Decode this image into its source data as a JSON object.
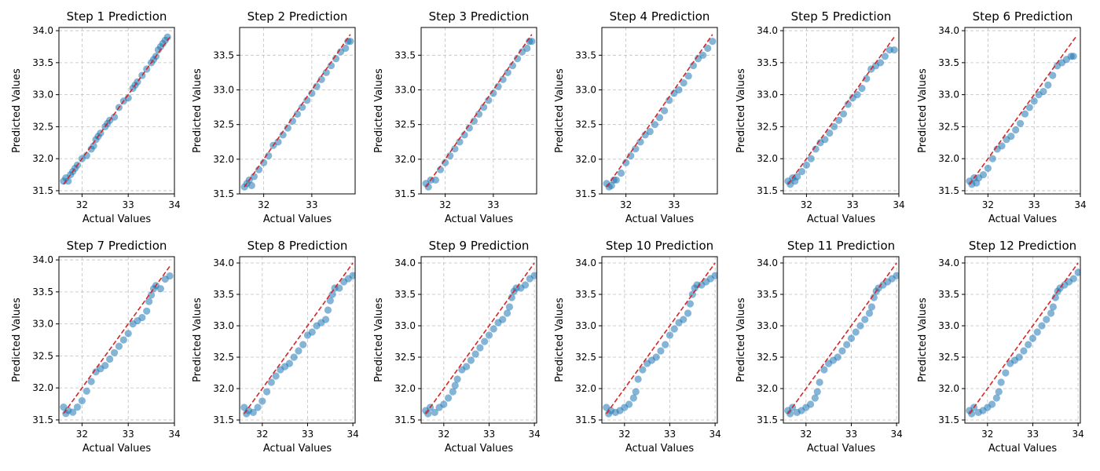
{
  "figure": {
    "xlabel": "Actual Values",
    "ylabel": "Predicted Values",
    "colors": {
      "points": "#1f77b4",
      "ideal_line": "#d62728",
      "grid": "#b0b0b0"
    }
  },
  "chart_data": [
    {
      "type": "scatter",
      "title": "Step 1 Prediction",
      "xlabel": "Actual Values",
      "ylabel": "Predicted Values",
      "xlim": [
        31.5,
        34.0
      ],
      "ylim": [
        31.45,
        34.05
      ],
      "xticks": [
        32,
        33,
        34
      ],
      "yticks": [
        31.5,
        32.0,
        32.5,
        33.0,
        33.5,
        34.0
      ],
      "grid": true,
      "ideal_line": [
        31.6,
        33.9
      ],
      "points": {
        "x": [
          31.6,
          31.65,
          31.7,
          31.75,
          31.8,
          31.85,
          31.9,
          32.0,
          32.1,
          32.2,
          32.25,
          32.3,
          32.35,
          32.4,
          32.5,
          32.55,
          32.6,
          32.7,
          32.8,
          32.9,
          33.0,
          33.1,
          33.15,
          33.2,
          33.3,
          33.4,
          33.5,
          33.55,
          33.6,
          33.65,
          33.7,
          33.75,
          33.8,
          33.85
        ],
        "y": [
          31.65,
          31.7,
          31.65,
          31.75,
          31.8,
          31.85,
          31.9,
          32.0,
          32.05,
          32.15,
          32.2,
          32.3,
          32.35,
          32.4,
          32.5,
          32.55,
          32.6,
          32.65,
          32.8,
          32.9,
          32.95,
          33.1,
          33.15,
          33.2,
          33.3,
          33.4,
          33.5,
          33.55,
          33.6,
          33.7,
          33.75,
          33.8,
          33.85,
          33.9
        ]
      }
    },
    {
      "type": "scatter",
      "title": "Step 2 Prediction",
      "xlabel": "Actual Values",
      "ylabel": "Predicted Values",
      "xlim": [
        31.5,
        33.9
      ],
      "ylim": [
        31.5,
        33.9
      ],
      "xticks": [
        32,
        33
      ],
      "yticks": [
        31.5,
        32.0,
        32.5,
        33.0,
        33.5
      ],
      "grid": true,
      "ideal_line": [
        31.6,
        33.8
      ],
      "points": {
        "x": [
          31.6,
          31.65,
          31.7,
          31.75,
          31.8,
          31.9,
          32.0,
          32.1,
          32.2,
          32.3,
          32.4,
          32.5,
          32.6,
          32.7,
          32.8,
          32.9,
          33.0,
          33.1,
          33.2,
          33.3,
          33.4,
          33.5,
          33.6,
          33.7,
          33.75,
          33.8
        ],
        "y": [
          31.6,
          31.65,
          31.7,
          31.62,
          31.75,
          31.85,
          31.95,
          32.05,
          32.2,
          32.25,
          32.35,
          32.45,
          32.55,
          32.65,
          32.75,
          32.85,
          32.95,
          33.05,
          33.15,
          33.25,
          33.35,
          33.45,
          33.55,
          33.6,
          33.7,
          33.7
        ]
      }
    },
    {
      "type": "scatter",
      "title": "Step 3 Prediction",
      "xlabel": "Actual Values",
      "ylabel": "Predicted Values",
      "xlim": [
        31.5,
        33.9
      ],
      "ylim": [
        31.5,
        33.9
      ],
      "xticks": [
        32,
        33
      ],
      "yticks": [
        31.5,
        32.0,
        32.5,
        33.0,
        33.5
      ],
      "grid": true,
      "ideal_line": [
        31.6,
        33.8
      ],
      "points": {
        "x": [
          31.6,
          31.65,
          31.7,
          31.8,
          31.9,
          32.0,
          32.1,
          32.2,
          32.3,
          32.4,
          32.5,
          32.6,
          32.7,
          32.8,
          32.9,
          33.0,
          33.1,
          33.2,
          33.3,
          33.4,
          33.5,
          33.6,
          33.7,
          33.75,
          33.8
        ],
        "y": [
          31.65,
          31.6,
          31.7,
          31.7,
          31.85,
          31.95,
          32.05,
          32.15,
          32.25,
          32.35,
          32.45,
          32.55,
          32.65,
          32.75,
          32.85,
          32.95,
          33.05,
          33.15,
          33.25,
          33.35,
          33.45,
          33.55,
          33.6,
          33.7,
          33.7
        ]
      }
    },
    {
      "type": "scatter",
      "title": "Step 4 Prediction",
      "xlabel": "Actual Values",
      "ylabel": "Predicted Values",
      "xlim": [
        31.5,
        33.9
      ],
      "ylim": [
        31.5,
        33.9
      ],
      "xticks": [
        32,
        33
      ],
      "yticks": [
        31.5,
        32.0,
        32.5,
        33.0,
        33.5
      ],
      "grid": true,
      "ideal_line": [
        31.6,
        33.8
      ],
      "points": {
        "x": [
          31.6,
          31.65,
          31.7,
          31.75,
          31.8,
          31.9,
          32.0,
          32.1,
          32.2,
          32.3,
          32.4,
          32.5,
          32.6,
          32.7,
          32.8,
          32.9,
          33.0,
          33.1,
          33.2,
          33.3,
          33.4,
          33.5,
          33.6,
          33.7,
          33.8
        ],
        "y": [
          31.65,
          31.6,
          31.62,
          31.7,
          31.7,
          31.8,
          31.95,
          32.05,
          32.15,
          32.25,
          32.35,
          32.4,
          32.5,
          32.6,
          32.7,
          32.85,
          32.95,
          33.0,
          33.1,
          33.2,
          33.35,
          33.45,
          33.5,
          33.6,
          33.7
        ]
      }
    },
    {
      "type": "scatter",
      "title": "Step 5 Prediction",
      "xlabel": "Actual Values",
      "ylabel": "Predicted Values",
      "xlim": [
        31.5,
        34.0
      ],
      "ylim": [
        31.45,
        34.05
      ],
      "xticks": [
        32,
        33,
        34
      ],
      "yticks": [
        31.5,
        32.0,
        32.5,
        33.0,
        33.5,
        34.0
      ],
      "grid": true,
      "ideal_line": [
        31.6,
        33.9
      ],
      "points": {
        "x": [
          31.6,
          31.65,
          31.7,
          31.75,
          31.8,
          31.9,
          32.0,
          32.1,
          32.2,
          32.3,
          32.4,
          32.5,
          32.6,
          32.7,
          32.8,
          32.9,
          33.0,
          33.1,
          33.2,
          33.3,
          33.4,
          33.5,
          33.6,
          33.7,
          33.8,
          33.9
        ],
        "y": [
          31.65,
          31.6,
          31.7,
          31.65,
          31.72,
          31.8,
          31.9,
          32.0,
          32.15,
          32.25,
          32.3,
          32.4,
          32.5,
          32.6,
          32.7,
          32.85,
          32.95,
          33.0,
          33.1,
          33.25,
          33.4,
          33.45,
          33.5,
          33.6,
          33.7,
          33.7
        ]
      }
    },
    {
      "type": "scatter",
      "title": "Step 6 Prediction",
      "xlabel": "Actual Values",
      "ylabel": "Predicted Values",
      "xlim": [
        31.5,
        34.0
      ],
      "ylim": [
        31.45,
        34.05
      ],
      "xticks": [
        32,
        33,
        34
      ],
      "yticks": [
        31.5,
        32.0,
        32.5,
        33.0,
        33.5,
        34.0
      ],
      "grid": true,
      "ideal_line": [
        31.6,
        33.9
      ],
      "points": {
        "x": [
          31.6,
          31.65,
          31.7,
          31.75,
          31.8,
          31.9,
          32.0,
          32.1,
          32.2,
          32.3,
          32.4,
          32.5,
          32.6,
          32.7,
          32.8,
          32.9,
          33.0,
          33.1,
          33.2,
          33.3,
          33.4,
          33.5,
          33.6,
          33.7,
          33.8,
          33.85
        ],
        "y": [
          31.65,
          31.6,
          31.7,
          31.62,
          31.7,
          31.75,
          31.85,
          32.0,
          32.15,
          32.2,
          32.3,
          32.35,
          32.45,
          32.55,
          32.7,
          32.8,
          32.9,
          33.0,
          33.05,
          33.15,
          33.3,
          33.45,
          33.5,
          33.55,
          33.6,
          33.6
        ]
      }
    },
    {
      "type": "scatter",
      "title": "Step 7 Prediction",
      "xlabel": "Actual Values",
      "ylabel": "Predicted Values",
      "xlim": [
        31.5,
        34.0
      ],
      "ylim": [
        31.45,
        34.05
      ],
      "xticks": [
        32,
        33,
        34
      ],
      "yticks": [
        31.5,
        32.0,
        32.5,
        33.0,
        33.5,
        34.0
      ],
      "grid": true,
      "ideal_line": [
        31.6,
        33.9
      ],
      "points": {
        "x": [
          31.6,
          31.65,
          31.7,
          31.8,
          31.9,
          32.0,
          32.1,
          32.2,
          32.3,
          32.4,
          32.5,
          32.6,
          32.7,
          32.8,
          32.9,
          33.0,
          33.1,
          33.2,
          33.3,
          33.4,
          33.45,
          33.5,
          33.55,
          33.6,
          33.7,
          33.8,
          33.9
        ],
        "y": [
          31.7,
          31.6,
          31.65,
          31.62,
          31.7,
          31.8,
          31.95,
          32.1,
          32.25,
          32.3,
          32.35,
          32.45,
          32.55,
          32.65,
          32.75,
          32.85,
          33.0,
          33.05,
          33.1,
          33.2,
          33.35,
          33.45,
          33.55,
          33.6,
          33.55,
          33.7,
          33.75
        ]
      }
    },
    {
      "type": "scatter",
      "title": "Step 8 Prediction",
      "xlabel": "Actual Values",
      "ylabel": "Predicted Values",
      "xlim": [
        31.5,
        34.05
      ],
      "ylim": [
        31.45,
        34.1
      ],
      "xticks": [
        32,
        33,
        34
      ],
      "yticks": [
        31.5,
        32.0,
        32.5,
        33.0,
        33.5,
        34.0
      ],
      "grid": true,
      "ideal_line": [
        31.6,
        34.0
      ],
      "points": {
        "x": [
          31.6,
          31.65,
          31.7,
          31.8,
          31.9,
          32.0,
          32.1,
          32.2,
          32.3,
          32.4,
          32.5,
          32.6,
          32.7,
          32.8,
          32.9,
          33.0,
          33.1,
          33.2,
          33.3,
          33.4,
          33.45,
          33.5,
          33.55,
          33.6,
          33.7,
          33.8,
          33.9,
          34.0
        ],
        "y": [
          31.7,
          31.6,
          31.65,
          31.62,
          31.7,
          31.8,
          31.95,
          32.1,
          32.2,
          32.3,
          32.35,
          32.4,
          32.5,
          32.6,
          32.7,
          32.85,
          32.9,
          33.0,
          33.05,
          33.1,
          33.25,
          33.4,
          33.5,
          33.6,
          33.6,
          33.7,
          33.75,
          33.8
        ]
      }
    },
    {
      "type": "scatter",
      "title": "Step 9 Prediction",
      "xlabel": "Actual Values",
      "ylabel": "Predicted Values",
      "xlim": [
        31.5,
        34.05
      ],
      "ylim": [
        31.45,
        34.1
      ],
      "xticks": [
        32,
        33,
        34
      ],
      "yticks": [
        31.5,
        32.0,
        32.5,
        33.0,
        33.5,
        34.0
      ],
      "grid": true,
      "ideal_line": [
        31.6,
        34.0
      ],
      "points": {
        "x": [
          31.6,
          31.65,
          31.7,
          31.8,
          31.9,
          32.0,
          32.1,
          32.2,
          32.25,
          32.3,
          32.4,
          32.5,
          32.6,
          32.7,
          32.8,
          32.9,
          33.0,
          33.1,
          33.2,
          33.3,
          33.4,
          33.45,
          33.5,
          33.55,
          33.6,
          33.7,
          33.8,
          33.9,
          34.0
        ],
        "y": [
          31.65,
          31.6,
          31.7,
          31.62,
          31.7,
          31.75,
          31.85,
          31.95,
          32.05,
          32.15,
          32.3,
          32.35,
          32.45,
          32.55,
          32.65,
          32.75,
          32.85,
          32.95,
          33.05,
          33.1,
          33.2,
          33.3,
          33.45,
          33.55,
          33.6,
          33.6,
          33.65,
          33.75,
          33.8
        ]
      }
    },
    {
      "type": "scatter",
      "title": "Step 10 Prediction",
      "xlabel": "Actual Values",
      "ylabel": "Predicted Values",
      "xlim": [
        31.5,
        34.05
      ],
      "ylim": [
        31.45,
        34.1
      ],
      "xticks": [
        32,
        33,
        34
      ],
      "yticks": [
        31.5,
        32.0,
        32.5,
        33.0,
        33.5,
        34.0
      ],
      "grid": true,
      "ideal_line": [
        31.6,
        34.0
      ],
      "points": {
        "x": [
          31.6,
          31.65,
          31.7,
          31.8,
          31.9,
          32.0,
          32.1,
          32.2,
          32.25,
          32.3,
          32.4,
          32.5,
          32.6,
          32.7,
          32.8,
          32.9,
          33.0,
          33.1,
          33.2,
          33.3,
          33.4,
          33.45,
          33.5,
          33.55,
          33.6,
          33.7,
          33.8,
          33.9,
          34.0
        ],
        "y": [
          31.7,
          31.6,
          31.65,
          31.62,
          31.65,
          31.7,
          31.75,
          31.85,
          31.95,
          32.15,
          32.3,
          32.4,
          32.45,
          32.5,
          32.6,
          32.7,
          32.85,
          32.95,
          33.05,
          33.1,
          33.2,
          33.35,
          33.5,
          33.6,
          33.65,
          33.65,
          33.7,
          33.75,
          33.8
        ]
      }
    },
    {
      "type": "scatter",
      "title": "Step 11 Prediction",
      "xlabel": "Actual Values",
      "ylabel": "Predicted Values",
      "xlim": [
        31.5,
        34.05
      ],
      "ylim": [
        31.45,
        34.1
      ],
      "xticks": [
        32,
        33,
        34
      ],
      "yticks": [
        31.5,
        32.0,
        32.5,
        33.0,
        33.5,
        34.0
      ],
      "grid": true,
      "ideal_line": [
        31.6,
        34.0
      ],
      "points": {
        "x": [
          31.6,
          31.65,
          31.7,
          31.8,
          31.9,
          32.0,
          32.1,
          32.2,
          32.25,
          32.3,
          32.4,
          32.5,
          32.6,
          32.7,
          32.8,
          32.9,
          33.0,
          33.1,
          33.2,
          33.3,
          33.4,
          33.45,
          33.5,
          33.55,
          33.6,
          33.7,
          33.8,
          33.9,
          34.0
        ],
        "y": [
          31.65,
          31.6,
          31.7,
          31.62,
          31.65,
          31.7,
          31.75,
          31.85,
          31.95,
          32.1,
          32.3,
          32.4,
          32.45,
          32.5,
          32.6,
          32.7,
          32.8,
          32.9,
          33.0,
          33.1,
          33.2,
          33.3,
          33.45,
          33.55,
          33.6,
          33.65,
          33.7,
          33.75,
          33.8
        ]
      }
    },
    {
      "type": "scatter",
      "title": "Step 12 Prediction",
      "xlabel": "Actual Values",
      "ylabel": "Predicted Values",
      "xlim": [
        31.5,
        34.05
      ],
      "ylim": [
        31.45,
        34.1
      ],
      "xticks": [
        32,
        33,
        34
      ],
      "yticks": [
        31.5,
        32.0,
        32.5,
        33.0,
        33.5,
        34.0
      ],
      "grid": true,
      "ideal_line": [
        31.6,
        34.0
      ],
      "points": {
        "x": [
          31.6,
          31.65,
          31.7,
          31.8,
          31.9,
          32.0,
          32.1,
          32.2,
          32.25,
          32.3,
          32.4,
          32.5,
          32.6,
          32.7,
          32.8,
          32.9,
          33.0,
          33.1,
          33.2,
          33.3,
          33.4,
          33.45,
          33.5,
          33.55,
          33.6,
          33.7,
          33.8,
          33.9,
          34.0
        ],
        "y": [
          31.65,
          31.6,
          31.7,
          31.62,
          31.65,
          31.7,
          31.75,
          31.85,
          31.95,
          32.1,
          32.25,
          32.4,
          32.45,
          32.5,
          32.6,
          32.7,
          32.8,
          32.9,
          33.0,
          33.1,
          33.2,
          33.3,
          33.45,
          33.55,
          33.6,
          33.65,
          33.7,
          33.75,
          33.85
        ]
      }
    }
  ]
}
